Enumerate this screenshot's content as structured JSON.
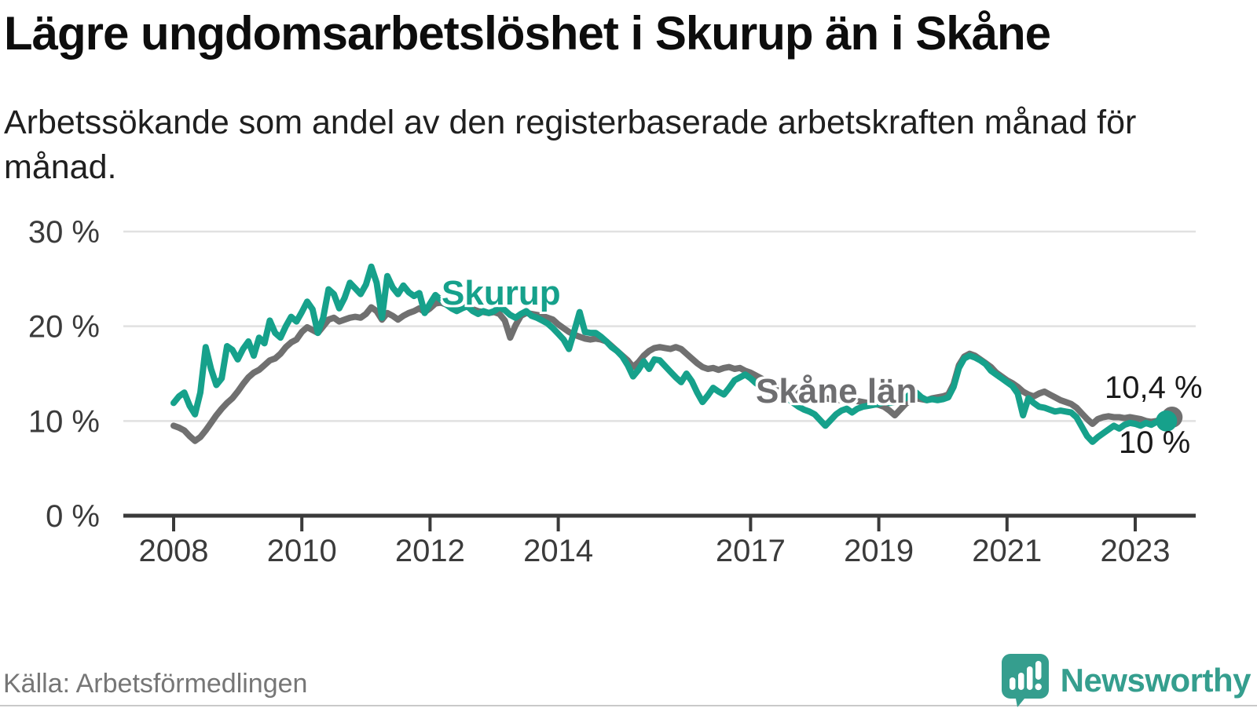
{
  "header": {
    "title": "Lägre ungdomsarbetslöshet i Skurup än i Skåne",
    "subtitle": "Arbetssökande som andel av den registerbaserade arbetskraften månad för månad."
  },
  "chart_data": {
    "type": "line",
    "x_start_year": 2008,
    "x_step_months": 1,
    "x_ticks": [
      2008,
      2010,
      2012,
      2014,
      2017,
      2019,
      2021,
      2023
    ],
    "y_ticks": [
      {
        "value": 0,
        "label": "0 %"
      },
      {
        "value": 10,
        "label": "10 %"
      },
      {
        "value": 20,
        "label": "20 %"
      },
      {
        "value": 30,
        "label": "30 %"
      }
    ],
    "ylim": [
      0,
      32
    ],
    "grid": "horizontal",
    "legend_position": "inline-labels",
    "series": [
      {
        "name": "Skåne län",
        "color": "#707070",
        "end_value_label": "10,4 %",
        "end_value": 10.4,
        "values": [
          9.5,
          9.3,
          9.0,
          8.4,
          7.9,
          8.3,
          9.0,
          9.8,
          10.6,
          11.3,
          11.9,
          12.4,
          13.1,
          13.9,
          14.6,
          15.1,
          15.4,
          15.9,
          16.4,
          16.6,
          17.1,
          17.8,
          18.3,
          18.6,
          19.4,
          19.9,
          19.6,
          19.3,
          20.0,
          20.7,
          20.9,
          20.5,
          20.7,
          20.9,
          21.0,
          20.9,
          21.3,
          22.0,
          21.6,
          20.7,
          21.4,
          21.1,
          20.7,
          21.1,
          21.4,
          21.6,
          21.9,
          21.5,
          21.9,
          22.4,
          22.5,
          22.3,
          22.1,
          21.9,
          22.0,
          22.1,
          21.8,
          21.6,
          21.5,
          21.4,
          21.5,
          21.3,
          20.6,
          18.8,
          20.1,
          21.1,
          21.4,
          21.3,
          21.2,
          21.1,
          20.9,
          20.7,
          20.2,
          19.8,
          19.4,
          19.1,
          18.9,
          18.7,
          18.6,
          18.7,
          18.6,
          18.4,
          17.9,
          17.4,
          16.9,
          16.4,
          15.7,
          16.2,
          16.9,
          17.4,
          17.7,
          17.8,
          17.7,
          17.6,
          17.8,
          17.6,
          17.1,
          16.6,
          16.1,
          15.7,
          15.5,
          15.6,
          15.4,
          15.6,
          15.7,
          15.5,
          15.6,
          15.3,
          15.1,
          14.8,
          14.5,
          14.2,
          13.9,
          13.7,
          13.6,
          13.4,
          13.2,
          13.0,
          12.9,
          12.8,
          12.7,
          12.6,
          12.4,
          12.3,
          12.2,
          12.2,
          12.3,
          12.2,
          12.1,
          12.0,
          11.9,
          11.8,
          11.7,
          11.5,
          11.1,
          10.6,
          11.2,
          11.8,
          12.2,
          12.4,
          12.3,
          12.2,
          12.4,
          12.5,
          12.6,
          12.8,
          13.9,
          15.9,
          16.8,
          17.1,
          16.9,
          16.5,
          16.1,
          15.7,
          15.1,
          14.7,
          14.3,
          14.0,
          13.6,
          13.1,
          12.8,
          12.6,
          12.9,
          13.1,
          12.8,
          12.5,
          12.2,
          12.0,
          11.8,
          11.4,
          10.8,
          10.2,
          9.7,
          10.2,
          10.4,
          10.5,
          10.4,
          10.4,
          10.3,
          10.4,
          10.3,
          10.2,
          10.0,
          9.9,
          10.0,
          10.2,
          10.4
        ]
      },
      {
        "name": "Skurup",
        "color": "#16a18b",
        "end_value_label": "10 %",
        "end_value": 10.0,
        "values": [
          11.9,
          12.6,
          13.0,
          11.6,
          10.7,
          13.0,
          17.8,
          15.5,
          13.8,
          14.5,
          17.9,
          17.5,
          16.5,
          17.6,
          18.4,
          16.9,
          18.8,
          18.2,
          20.6,
          19.3,
          18.8,
          20.0,
          21.0,
          20.5,
          21.5,
          22.6,
          21.8,
          19.3,
          20.9,
          23.9,
          23.4,
          21.9,
          23.0,
          24.6,
          24.0,
          23.4,
          24.4,
          26.3,
          24.6,
          20.9,
          25.3,
          24.1,
          23.4,
          24.3,
          23.6,
          23.2,
          23.5,
          21.4,
          22.4,
          23.3,
          22.8,
          22.3,
          21.9,
          21.6,
          21.9,
          22.1,
          21.6,
          21.3,
          21.6,
          21.4,
          21.6,
          22.0,
          21.7,
          21.2,
          20.9,
          21.3,
          21.6,
          21.1,
          20.9,
          20.6,
          20.3,
          19.8,
          19.2,
          18.6,
          17.6,
          19.5,
          21.5,
          19.4,
          19.3,
          19.3,
          18.9,
          18.4,
          17.8,
          17.4,
          16.8,
          15.9,
          14.7,
          15.4,
          16.3,
          15.5,
          16.5,
          16.4,
          15.8,
          15.2,
          14.6,
          14.1,
          15.0,
          14.2,
          13.0,
          12.0,
          12.7,
          13.5,
          13.1,
          12.8,
          13.5,
          14.3,
          14.6,
          14.9,
          14.5,
          14.0,
          13.6,
          13.1,
          12.8,
          12.6,
          12.8,
          12.4,
          11.9,
          11.5,
          11.2,
          11.0,
          10.7,
          10.1,
          9.5,
          10.1,
          10.7,
          11.1,
          11.3,
          10.9,
          11.3,
          11.5,
          11.6,
          11.7,
          11.8,
          12.0,
          11.9,
          12.0,
          12.1,
          12.4,
          12.9,
          13.0,
          12.5,
          12.2,
          12.3,
          12.2,
          12.3,
          12.5,
          13.6,
          15.6,
          16.6,
          16.9,
          16.7,
          16.4,
          16.0,
          15.3,
          14.9,
          14.5,
          14.1,
          13.7,
          12.9,
          10.6,
          12.4,
          11.9,
          11.5,
          11.4,
          11.2,
          11.0,
          11.1,
          11.0,
          10.9,
          10.4,
          9.4,
          8.4,
          7.8,
          8.3,
          8.7,
          9.1,
          9.5,
          9.2,
          9.6,
          9.8,
          9.7,
          9.5,
          9.8,
          9.6,
          9.9,
          10.2,
          10.0
        ]
      }
    ]
  },
  "annotations": {
    "skurup_label": "Skurup",
    "skane_label": "Skåne län",
    "skane_end_label": "10,4 %",
    "skurup_end_label": "10 %"
  },
  "footer": {
    "source": "Källa: Arbetsförmedlingen",
    "brand": "Newsworthy"
  },
  "colors": {
    "skurup": "#16a18b",
    "skane": "#707070",
    "grid": "#e1e1e1",
    "axis": "#3a3a3a",
    "axis_text": "#3b3b3b",
    "brand_teal": "#359e8e"
  }
}
